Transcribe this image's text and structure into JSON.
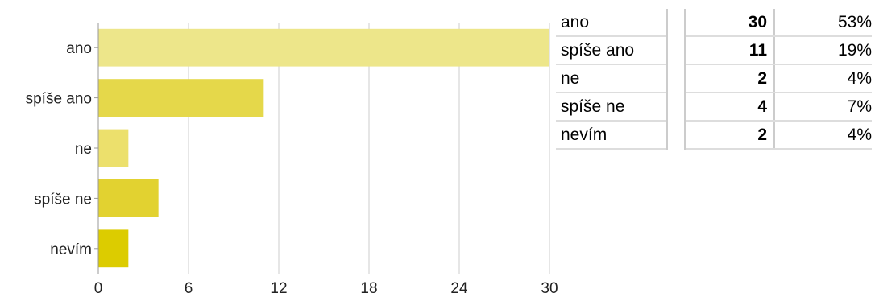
{
  "chart_data": {
    "type": "bar",
    "orientation": "horizontal",
    "categories": [
      "ano",
      "spíše ano",
      "ne",
      "spíše ne",
      "nevím"
    ],
    "values": [
      30,
      11,
      2,
      4,
      2
    ],
    "xticks": [
      "0",
      "6",
      "12",
      "18",
      "24",
      "30"
    ],
    "xlim": [
      0,
      30
    ],
    "colors": [
      "#ede68a",
      "#e5d84a",
      "#ece06c",
      "#e2d230",
      "#dccc00"
    ],
    "title": "",
    "xlabel": "",
    "ylabel": ""
  },
  "table": {
    "rows": [
      {
        "label": "ano",
        "count": "30",
        "percent": "53%"
      },
      {
        "label": "spíše ano",
        "count": "11",
        "percent": "19%"
      },
      {
        "label": "ne",
        "count": "2",
        "percent": "4%"
      },
      {
        "label": "spíše ne",
        "count": "4",
        "percent": "7%"
      },
      {
        "label": "nevím",
        "count": "2",
        "percent": "4%"
      }
    ]
  }
}
